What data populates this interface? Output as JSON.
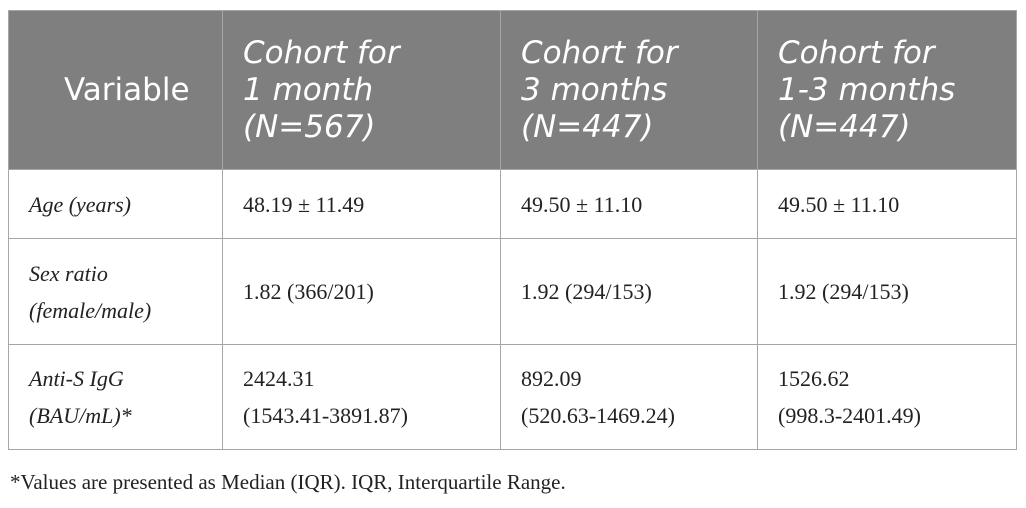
{
  "table": {
    "header": [
      [
        "Variable"
      ],
      [
        "Cohort for",
        "1 month",
        "(N=567)"
      ],
      [
        "Cohort for",
        "3 months",
        "(N=447)"
      ],
      [
        "Cohort for",
        "1-3 months",
        "(N=447)"
      ]
    ],
    "rows": [
      [
        [
          "Age (years)"
        ],
        [
          "48.19 ± 11.49"
        ],
        [
          "49.50 ± 11.10"
        ],
        [
          "49.50 ± 11.10"
        ]
      ],
      [
        [
          "Sex ratio",
          "(female/male)"
        ],
        [
          "1.82 (366/201)"
        ],
        [
          "1.92 (294/153)"
        ],
        [
          "1.92 (294/153)"
        ]
      ],
      [
        [
          "Anti-S IgG",
          "(BAU/mL)*"
        ],
        [
          "2424.31",
          "(1543.41-3891.87)"
        ],
        [
          "892.09",
          "(520.63-1469.24)"
        ],
        [
          "1526.62",
          "(998.3-2401.49)"
        ]
      ]
    ]
  },
  "footnote": "*Values are presented as Median (IQR). IQR, Interquartile Range."
}
